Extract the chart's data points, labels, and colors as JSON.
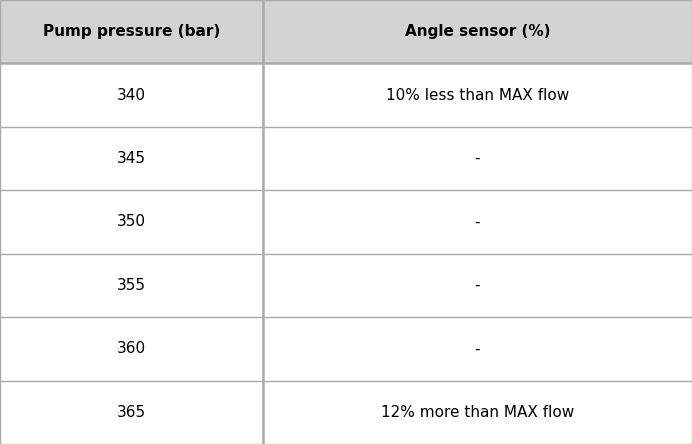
{
  "col1_header": "Pump pressure (bar)",
  "col2_header": "Angle sensor (%)",
  "rows": [
    [
      "340",
      "10% less than MAX flow"
    ],
    [
      "345",
      "-"
    ],
    [
      "350",
      "-"
    ],
    [
      "355",
      "-"
    ],
    [
      "360",
      "-"
    ],
    [
      "365",
      "12% more than MAX flow"
    ]
  ],
  "header_bg": "#d3d3d3",
  "row_bg": "#ffffff",
  "line_color": "#aaaaaa",
  "text_color": "#000000",
  "header_fontsize": 11,
  "cell_fontsize": 11,
  "fig_width": 6.92,
  "fig_height": 4.44,
  "col_split": 0.38
}
